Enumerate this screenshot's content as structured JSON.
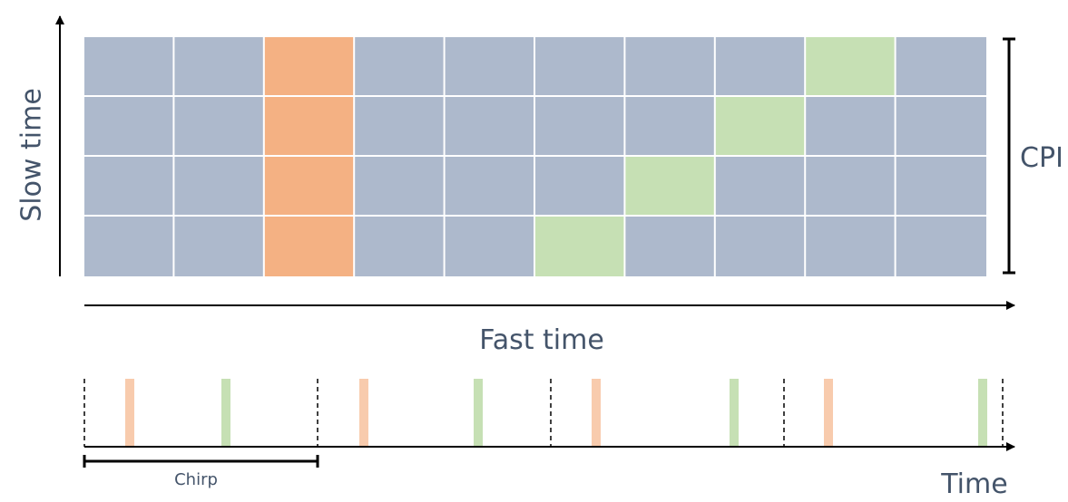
{
  "labels": {
    "slow_time": "Slow time",
    "fast_time": "Fast time",
    "cpi": "CPI",
    "chirp": "Chirp",
    "time": "Time"
  },
  "colors": {
    "cell_default": "#adb9cc",
    "cell_orange": "#f4b183",
    "cell_green": "#c6e0b4",
    "grid_line": "#ffffff",
    "axis": "#000000",
    "label_text": "#44546a",
    "marker_orange": "#f8cbad",
    "marker_green": "#c6e0b4"
  },
  "grid": {
    "columns": 10,
    "rows": 4,
    "orange_column": 3,
    "green_cells": [
      {
        "row": 1,
        "column": 9
      },
      {
        "row": 2,
        "column": 8
      },
      {
        "row": 3,
        "column": 7
      },
      {
        "row": 4,
        "column": 6
      }
    ]
  }
}
